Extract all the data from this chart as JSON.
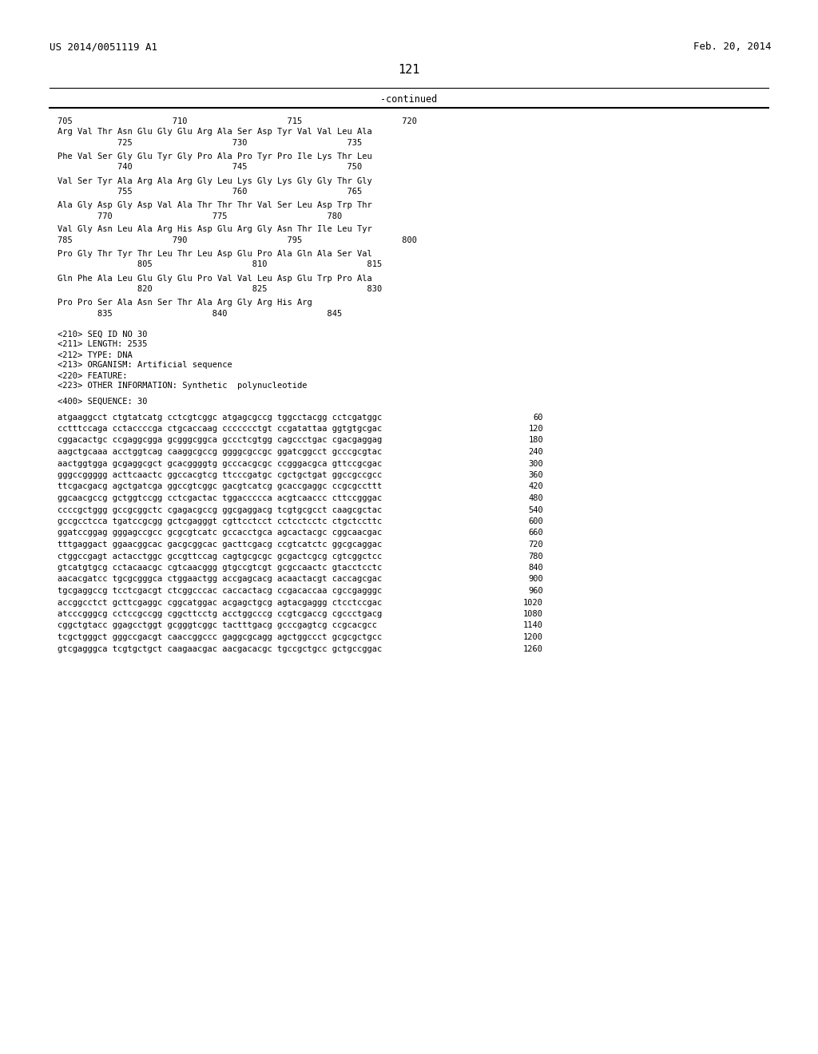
{
  "header_left": "US 2014/0051119 A1",
  "header_right": "Feb. 20, 2014",
  "page_number": "121",
  "continued_label": "-continued",
  "bg_color": "#ffffff",
  "text_color": "#000000",
  "font_size": 7.5,
  "header_font_size": 9.0,
  "page_num_font_size": 11.0,
  "aa_blocks": [
    {
      "ruler": "705                    710                    715                    720",
      "seq": "Arg Val Thr Asn Glu Gly Glu Arg Ala Ser Asp Tyr Val Val Leu Ala",
      "nums": "            725                    730                    735"
    },
    {
      "ruler": "",
      "seq": "Phe Val Ser Gly Glu Tyr Gly Pro Ala Pro Tyr Pro Ile Lys Thr Leu",
      "nums": "            740                    745                    750"
    },
    {
      "ruler": "",
      "seq": "Val Ser Tyr Ala Arg Ala Arg Gly Leu Lys Gly Lys Gly Gly Thr Gly",
      "nums": "            755                    760                    765"
    },
    {
      "ruler": "",
      "seq": "Ala Gly Asp Gly Asp Val Ala Thr Thr Thr Val Ser Leu Asp Trp Thr",
      "nums": "        770                    775                    780"
    },
    {
      "ruler": "",
      "seq": "Val Gly Asn Leu Ala Arg His Asp Glu Arg Gly Asn Thr Ile Leu Tyr",
      "nums": "785                    790                    795                    800"
    },
    {
      "ruler": "",
      "seq": "Pro Gly Thr Tyr Thr Leu Thr Leu Asp Glu Pro Ala Gln Ala Ser Val",
      "nums": "                805                    810                    815"
    },
    {
      "ruler": "",
      "seq": "Gln Phe Ala Leu Glu Gly Glu Pro Val Val Leu Asp Glu Trp Pro Ala",
      "nums": "                820                    825                    830"
    },
    {
      "ruler": "",
      "seq": "Pro Pro Ser Ala Asn Ser Thr Ala Arg Gly Arg His Arg",
      "nums": "        835                    840                    845"
    }
  ],
  "metadata_lines": [
    "<210> SEQ ID NO 30",
    "<211> LENGTH: 2535",
    "<212> TYPE: DNA",
    "<213> ORGANISM: Artificial sequence",
    "<220> FEATURE:",
    "<223> OTHER INFORMATION: Synthetic  polynucleotide",
    "",
    "<400> SEQUENCE: 30"
  ],
  "dna_lines": [
    {
      "seq": "atgaaggcct ctgtatcatg cctcgtcggc atgagcgccg tggcctacgg cctcgatggc",
      "num": "60"
    },
    {
      "seq": "cctttccaga cctaccccga ctgcaccaag ccccccctgt ccgatattaa ggtgtgcgac",
      "num": "120"
    },
    {
      "seq": "cggacactgc ccgaggcgga gcgggcggca gccctcgtgg cagccctgac cgacgaggag",
      "num": "180"
    },
    {
      "seq": "aagctgcaaa acctggtcag caaggcgccg ggggcgccgc ggatcggcct gcccgcgtac",
      "num": "240"
    },
    {
      "seq": "aactggtgga gcgaggcgct gcacggggtg gcccacgcgc ccgggacgca gttccgcgac",
      "num": "300"
    },
    {
      "seq": "gggccggggg acttcaactc ggccacgtcg ttcccgatgc cgctgctgat ggccgccgcc",
      "num": "360"
    },
    {
      "seq": "ttcgacgacg agctgatcga ggccgtcggc gacgtcatcg gcaccgaggc ccgcgccttt",
      "num": "420"
    },
    {
      "seq": "ggcaacgccg gctggtccgg cctcgactac tggaccccca acgtcaaccc cttccgggac",
      "num": "480"
    },
    {
      "seq": "ccccgctggg gccgcggctc cgagacgccg ggcgaggacg tcgtgcgcct caagcgctac",
      "num": "540"
    },
    {
      "seq": "gccgcctcca tgatccgcgg gctcgagggt cgttcctcct cctcctcctc ctgctccttc",
      "num": "600"
    },
    {
      "seq": "ggatccggag gggagccgcc gcgcgtcatc gccacctgca agcactacgc cggcaacgac",
      "num": "660"
    },
    {
      "seq": "tttgaggact ggaacggcac gacgcggcac gacttcgacg ccgtcatctc ggcgcaggac",
      "num": "720"
    },
    {
      "seq": "ctggccgagt actacctggc gccgttccag cagtgcgcgc gcgactcgcg cgtcggctcc",
      "num": "780"
    },
    {
      "seq": "gtcatgtgcg cctacaacgc cgtcaacggg gtgccgtcgt gcgccaactc gtacctcctc",
      "num": "840"
    },
    {
      "seq": "aacacgatcc tgcgcgggca ctggaactgg accgagcacg acaactacgt caccagcgac",
      "num": "900"
    },
    {
      "seq": "tgcgaggccg tcctcgacgt ctcggcccac caccactacg ccgacaccaa cgccgagggc",
      "num": "960"
    },
    {
      "seq": "accggcctct gcttcgaggc cggcatggac acgagctgcg agtacgaggg ctcctccgac",
      "num": "1020"
    },
    {
      "seq": "atcccgggcg cctccgccgg cggcttcctg acctggcccg ccgtcgaccg cgccctgacg",
      "num": "1080"
    },
    {
      "seq": "cggctgtacc ggagcctggt gcgggtcggc tactttgacg gcccgagtcg ccgcacgcc",
      "num": "1140"
    },
    {
      "seq": "tcgctgggct gggccgacgt caaccggccc gaggcgcagg agctggccct gcgcgctgcc",
      "num": "1200"
    },
    {
      "seq": "gtcgagggca tcgtgctgct caagaacgac aacgacacgc tgccgctgcc gctgccggac",
      "num": "1260"
    }
  ]
}
